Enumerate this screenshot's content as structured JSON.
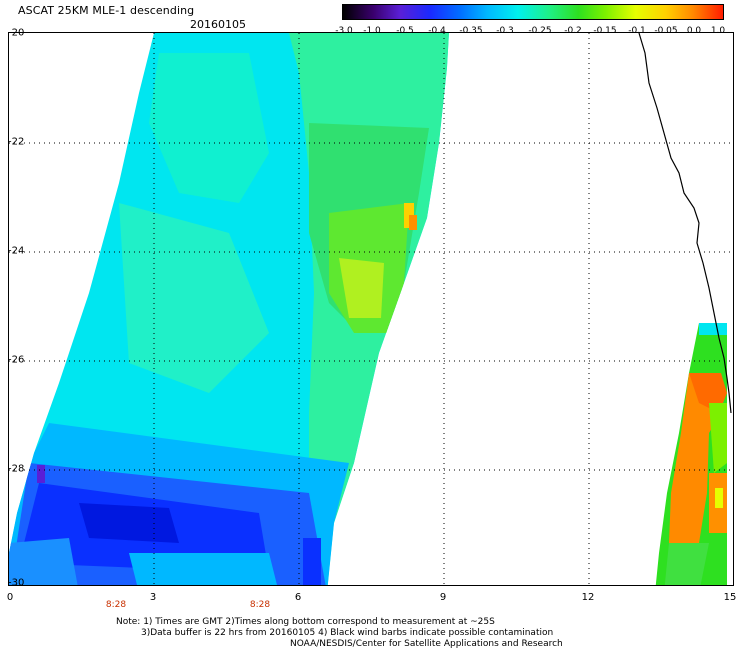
{
  "title": "ASCAT 25KM MLE-1 descending",
  "date": "20160105",
  "colorbar": {
    "labels": [
      "-3.0",
      "-1.0",
      "-0.5",
      "-0.4",
      "-0.35",
      "-0.3",
      "-0.25",
      "-0.2",
      "-0.15",
      "-0.1",
      "-0.05",
      "0.0",
      "1.0"
    ]
  },
  "axes": {
    "x_ticks": [
      "0",
      "3",
      "6",
      "9",
      "12",
      "15"
    ],
    "y_ticks": [
      "-20",
      "-22",
      "-24",
      "-26",
      "-28",
      "-30"
    ],
    "times": [
      "8:28",
      "8:28"
    ]
  },
  "notes": {
    "line1": "Note: 1) Times are GMT 2)Times along bottom correspond to measurement at ~25S",
    "line2": "3)Data buffer is 22 hrs from 20160105 4) Black wind barbs indicate possible contamination",
    "line3": "NOAA/NESDIS/Center for Satellite Applications and Research"
  },
  "colors": {
    "accent_time": "#c83000",
    "grid": "#000000"
  }
}
